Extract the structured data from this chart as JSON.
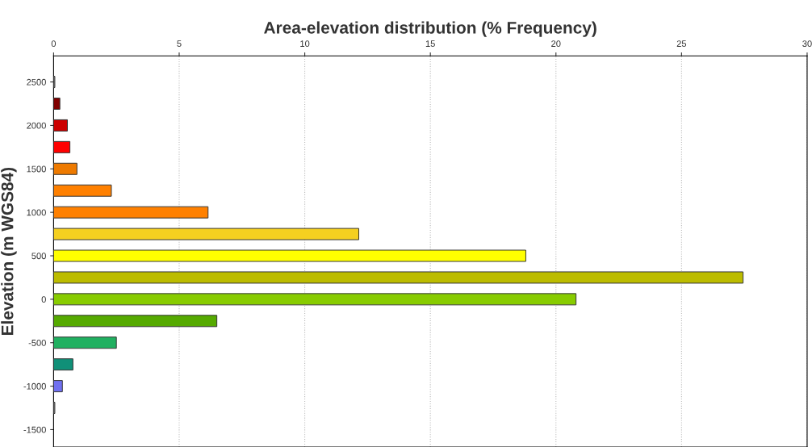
{
  "chart_data": {
    "type": "bar",
    "orientation": "horizontal",
    "title": "Area-elevation distribution (% Frequency)",
    "ylabel": "Elevation (m WGS84)",
    "x": [
      2500,
      2250,
      2000,
      1750,
      1500,
      1250,
      1000,
      750,
      500,
      250,
      0,
      -250,
      -500,
      -750,
      -1000,
      -1250
    ],
    "values": [
      0.05,
      0.25,
      0.55,
      0.65,
      0.93,
      2.3,
      6.15,
      12.15,
      18.8,
      27.45,
      20.8,
      6.5,
      2.5,
      0.77,
      0.35,
      0.05
    ],
    "colors": [
      "#8a8a8a",
      "#800000",
      "#cc0000",
      "#ff0000",
      "#ee7a00",
      "#ff8000",
      "#ff8000",
      "#f5d020",
      "#ffff00",
      "#bcbc00",
      "#88cc00",
      "#55aa00",
      "#20b060",
      "#109078",
      "#7070f0",
      "#8a8a8a"
    ],
    "xlim": [
      0,
      30
    ],
    "xticks": [
      0,
      5,
      10,
      15,
      20,
      25,
      30
    ],
    "ylim": [
      -1700,
      2800
    ],
    "yticks": [
      -1500,
      -1000,
      -500,
      0,
      500,
      1000,
      1500,
      2000,
      2500
    ],
    "grid": "x"
  }
}
